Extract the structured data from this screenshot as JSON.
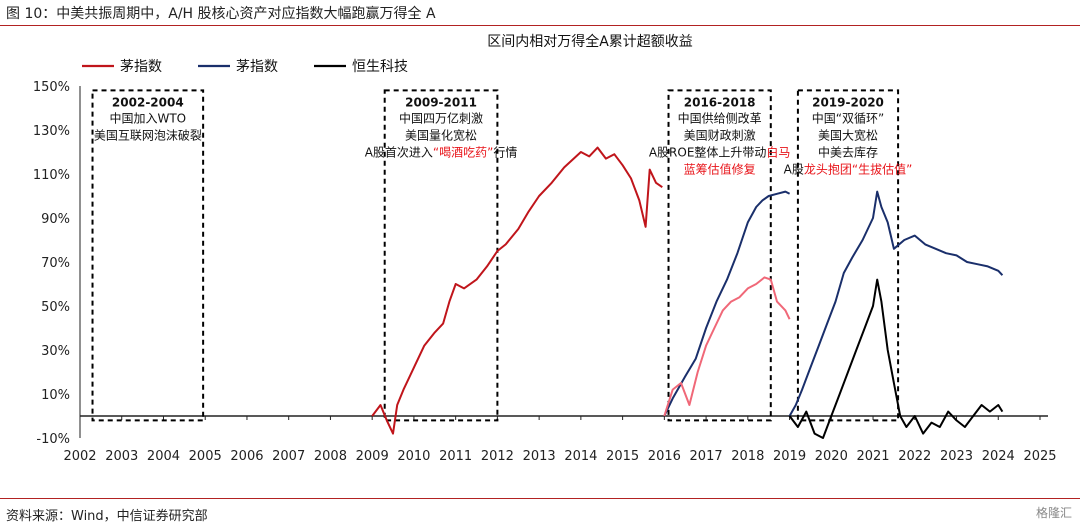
{
  "figure": {
    "title": "图 10：中美共振周期中，A/H 股核心资产对应指数大幅跑赢万得全 A",
    "source": "资料来源：Wind，中信证券研究部",
    "watermark": "格隆汇"
  },
  "chart_data": {
    "type": "line",
    "title": "区间内相对万得全A累计超额收益",
    "xlabel": "",
    "ylabel": "",
    "xlim": [
      2002,
      2025
    ],
    "ylim": [
      -10,
      150
    ],
    "x_ticks": [
      2002,
      2003,
      2004,
      2005,
      2006,
      2007,
      2008,
      2009,
      2010,
      2011,
      2012,
      2013,
      2014,
      2015,
      2016,
      2017,
      2018,
      2019,
      2020,
      2021,
      2022,
      2023,
      2024,
      2025
    ],
    "y_ticks": [
      -10,
      10,
      30,
      50,
      70,
      90,
      110,
      130,
      150
    ],
    "y_tick_labels": [
      "-10%",
      "10%",
      "30%",
      "50%",
      "70%",
      "90%",
      "110%",
      "130%",
      "150%"
    ],
    "legend": {
      "position": "top-left",
      "entries": [
        {
          "label": "茅指数",
          "color": "#c0151b"
        },
        {
          "label": "茅指数",
          "color": "#1a2f6b"
        },
        {
          "label": "恒生科技",
          "color": "#000000"
        }
      ]
    },
    "series": [
      {
        "name": "茅指数",
        "color": "#c0151b",
        "x": [
          2009.0,
          2009.2,
          2009.35,
          2009.5,
          2009.6,
          2009.75,
          2010.0,
          2010.25,
          2010.5,
          2010.7,
          2010.85,
          2011.0,
          2011.2,
          2011.5,
          2011.75,
          2012.0,
          2012.2,
          2012.5,
          2012.75,
          2013.0,
          2013.3,
          2013.6,
          2014.0,
          2014.2,
          2014.4,
          2014.6,
          2014.8,
          2015.0,
          2015.2,
          2015.4,
          2015.55,
          2015.65,
          2015.8,
          2015.95
        ],
        "y": [
          0,
          5,
          -2,
          -8,
          5,
          12,
          22,
          32,
          38,
          42,
          52,
          60,
          58,
          62,
          68,
          75,
          78,
          85,
          93,
          100,
          106,
          113,
          120,
          118,
          122,
          117,
          119,
          114,
          108,
          98,
          86,
          112,
          106,
          104
        ]
      },
      {
        "name": "茅指数",
        "color": "#1a2f6b",
        "x": [
          2016.0,
          2016.2,
          2016.5,
          2016.75,
          2017.0,
          2017.25,
          2017.5,
          2017.75,
          2018.0,
          2018.2,
          2018.35,
          2018.5,
          2018.7,
          2018.9,
          2019.0
        ],
        "y": [
          0,
          8,
          18,
          26,
          40,
          52,
          62,
          74,
          88,
          95,
          98,
          100,
          101,
          102,
          101
        ]
      },
      {
        "name": "茅指数",
        "color": "#f06878",
        "x": [
          2016.0,
          2016.2,
          2016.4,
          2016.6,
          2016.8,
          2017.0,
          2017.2,
          2017.4,
          2017.6,
          2017.8,
          2018.0,
          2018.2,
          2018.4,
          2018.55,
          2018.7,
          2018.9,
          2019.0
        ],
        "y": [
          0,
          12,
          15,
          5,
          20,
          32,
          40,
          48,
          52,
          54,
          58,
          60,
          63,
          62,
          52,
          48,
          44
        ]
      },
      {
        "name": "茅指数",
        "color": "#1a2f6b",
        "x": [
          2019.0,
          2019.15,
          2019.3,
          2019.5,
          2019.7,
          2019.9,
          2020.1,
          2020.3,
          2020.5,
          2020.75,
          2021.0,
          2021.1,
          2021.2,
          2021.35,
          2021.5,
          2021.75,
          2022.0,
          2022.25,
          2022.5,
          2022.75,
          2023.0,
          2023.25,
          2023.5,
          2023.75,
          2024.0,
          2024.1
        ],
        "y": [
          0,
          5,
          12,
          22,
          32,
          42,
          52,
          65,
          72,
          80,
          90,
          102,
          95,
          88,
          76,
          80,
          82,
          78,
          76,
          74,
          73,
          70,
          69,
          68,
          66,
          64
        ]
      },
      {
        "name": "恒生科技",
        "color": "#000000",
        "x": [
          2019.0,
          2019.2,
          2019.4,
          2019.6,
          2019.8,
          2020.0,
          2020.2,
          2020.4,
          2020.6,
          2020.8,
          2021.0,
          2021.1,
          2021.2,
          2021.35,
          2021.5,
          2021.65,
          2021.8,
          2022.0,
          2022.2,
          2022.4,
          2022.6,
          2022.8,
          2023.0,
          2023.2,
          2023.4,
          2023.6,
          2023.8,
          2024.0,
          2024.1
        ],
        "y": [
          0,
          -5,
          2,
          -8,
          -10,
          0,
          10,
          20,
          30,
          40,
          50,
          62,
          52,
          30,
          15,
          0,
          -5,
          0,
          -8,
          -3,
          -5,
          2,
          -2,
          -5,
          0,
          5,
          2,
          5,
          2
        ]
      }
    ],
    "periods": [
      {
        "start": 2002.3,
        "end": 2004.95,
        "years": "2002-2004",
        "lines": [
          "中国加入WTO",
          "美国互联网泡沫破裂"
        ],
        "red_lines": []
      },
      {
        "start": 2009.3,
        "end": 2012.0,
        "years": "2009-2011",
        "lines": [
          "中国四万亿刺激",
          "美国量化宽松",
          "A股首次进入"
        ],
        "red_lines": [
          "“喝酒吃药”"
        ],
        "suffix": "行情"
      },
      {
        "start": 2016.1,
        "end": 2018.55,
        "years": "2016-2018",
        "lines": [
          "中国供给侧改革",
          "美国财政刺激",
          "A股ROE整体上升带动"
        ],
        "red_lines": [
          "白马",
          "蓝筹估值修复"
        ]
      },
      {
        "start": 2019.2,
        "end": 2021.6,
        "years": "2019-2020",
        "lines": [
          "中国“双循环”",
          "美国大宽松",
          "中美去库存",
          "A股"
        ],
        "red_lines": [
          "龙头抱团“生拔估值”"
        ]
      }
    ]
  }
}
